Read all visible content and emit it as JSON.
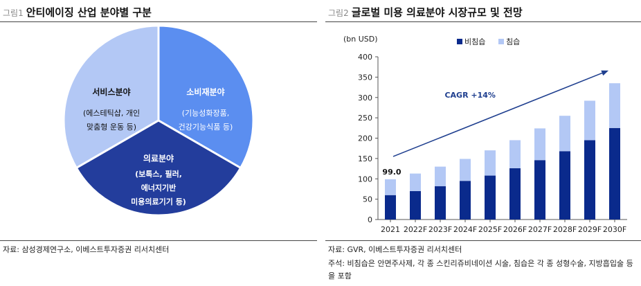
{
  "left": {
    "fig_no": "그림1",
    "title": "안티에이징 산업 분야별 구분",
    "source": "자료: 삼성경제연구소, 이베스트투자증권 리서치센터",
    "pie": {
      "segments": [
        {
          "name": "서비스분야",
          "lines": [
            "(에스테틱샵, 개인",
            "맞춤형 운동 등)"
          ],
          "color": "#b3c8f5"
        },
        {
          "name": "소비재분야",
          "lines": [
            "(기능성화장품,",
            "건강기능식품 등)"
          ],
          "color": "#5b8ef0"
        },
        {
          "name": "의료분야",
          "lines": [
            "(보톡스, 필러,",
            "에너지기반",
            "미용의료기기 등)"
          ],
          "color": "#233d9c"
        }
      ]
    }
  },
  "right": {
    "fig_no": "그림2",
    "title": "글로벌 미용 의료분야 시장규모 및 전망",
    "source": "자료: GVR, 이베스트투자증권 리서치센터",
    "note": "주석: 비침습은 안면주사제, 각 종 스킨리쥬비네이션 시술, 침습은 각 종 성형수술, 지방흡입술 등을 포함"
  },
  "chart_data": {
    "type": "bar",
    "stacked": true,
    "categories": [
      "2021",
      "2022F",
      "2023F",
      "2024F",
      "2025F",
      "2026F",
      "2027F",
      "2028F",
      "2029F",
      "2030F"
    ],
    "series": [
      {
        "name": "비침습",
        "color": "#0a2a8c",
        "values": [
          60,
          70,
          82,
          95,
          108,
          126,
          146,
          168,
          195,
          225
        ]
      },
      {
        "name": "침습",
        "color": "#b3c8f5",
        "values": [
          39,
          43,
          48,
          54,
          62,
          69,
          78,
          87,
          97,
          110
        ]
      }
    ],
    "ylabel": "(bn USD)",
    "ylim": [
      0,
      400
    ],
    "yticks": [
      0,
      50,
      100,
      150,
      200,
      250,
      300,
      350,
      400
    ],
    "legend_position": "top-left",
    "grid": false,
    "annotations": {
      "first_total_label": "99.0",
      "cagr_label": "CAGR +14%",
      "arrow_color": "#1f3f8f"
    }
  }
}
